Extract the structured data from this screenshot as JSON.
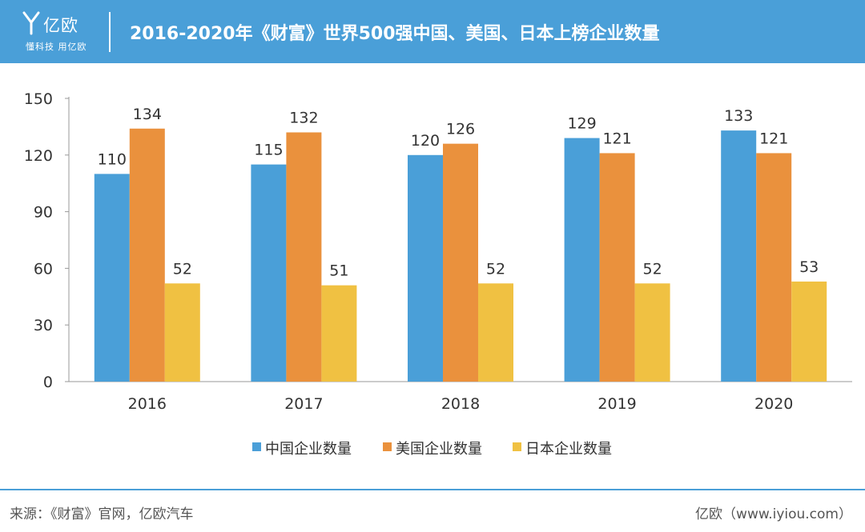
{
  "header": {
    "logo_text": "亿欧",
    "logo_tagline": "懂科技 用亿欧",
    "title": "2016-2020年《财富》世界500强中国、美国、日本上榜企业数量"
  },
  "colors": {
    "header_bg": "#4a9fd8",
    "china": "#4a9fd8",
    "usa": "#ea913d",
    "japan": "#f0c142",
    "axis": "#999999",
    "text": "#333333"
  },
  "chart_data": {
    "type": "bar",
    "title": "2016-2020年《财富》世界500强中国、美国、日本上榜企业数量",
    "categories": [
      "2016",
      "2017",
      "2018",
      "2019",
      "2020"
    ],
    "series": [
      {
        "name": "中国企业数量",
        "values": [
          110,
          115,
          120,
          129,
          133
        ]
      },
      {
        "name": "美国企业数量",
        "values": [
          134,
          132,
          126,
          121,
          121
        ]
      },
      {
        "name": "日本企业数量",
        "values": [
          52,
          51,
          52,
          52,
          53
        ]
      }
    ],
    "ylim": [
      0,
      150
    ],
    "yticks": [
      0,
      30,
      60,
      90,
      120,
      150
    ],
    "grid": false,
    "legend": "bottom",
    "data_labels": true
  },
  "footer": {
    "source": "来源：《财富》官网，亿欧汽车",
    "credit": "亿欧（www.iyiou.com）"
  }
}
